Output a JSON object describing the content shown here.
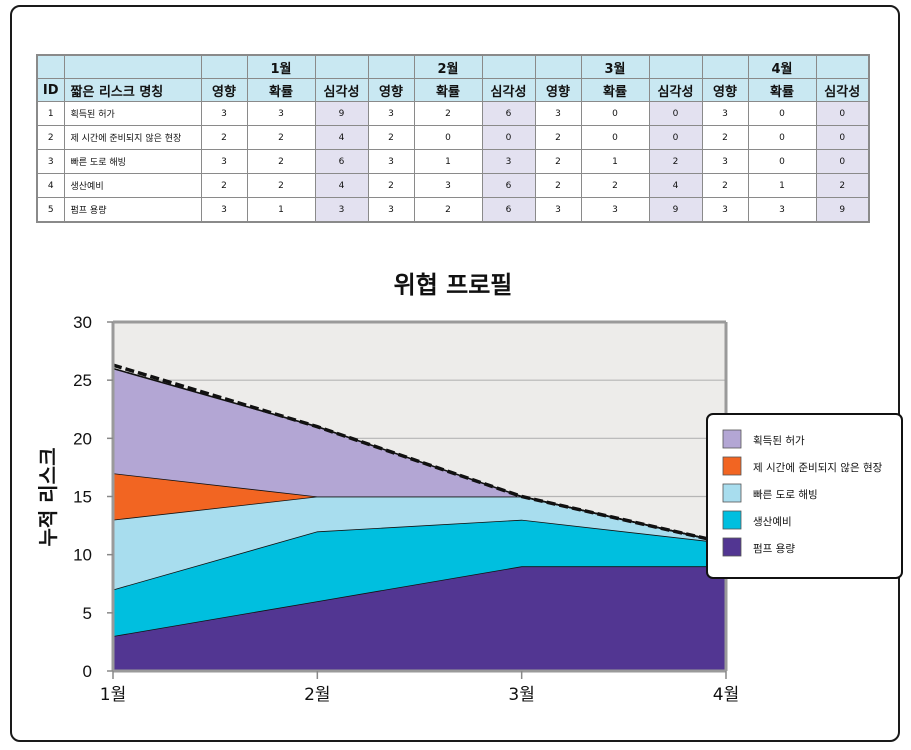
{
  "table": {
    "id_header": "ID",
    "name_header": "짧은 리스크 명칭",
    "months": [
      "1월",
      "2월",
      "3월",
      "4월"
    ],
    "sub_headers": [
      "영향",
      "확률",
      "심각성"
    ],
    "rows": [
      {
        "id": "1",
        "name": "획득된 허가",
        "values": [
          [
            "3",
            "3",
            "9"
          ],
          [
            "3",
            "2",
            "6"
          ],
          [
            "3",
            "0",
            "0"
          ],
          [
            "3",
            "0",
            "0"
          ]
        ]
      },
      {
        "id": "2",
        "name": "제 시간에 준비되지 않은 현장",
        "values": [
          [
            "2",
            "2",
            "4"
          ],
          [
            "2",
            "0",
            "0"
          ],
          [
            "2",
            "0",
            "0"
          ],
          [
            "2",
            "0",
            "0"
          ]
        ]
      },
      {
        "id": "3",
        "name": "빠른 도로 해빙",
        "values": [
          [
            "3",
            "2",
            "6"
          ],
          [
            "3",
            "1",
            "3"
          ],
          [
            "2",
            "1",
            "2"
          ],
          [
            "3",
            "0",
            "0"
          ]
        ]
      },
      {
        "id": "4",
        "name": "생산예비",
        "values": [
          [
            "2",
            "2",
            "4"
          ],
          [
            "2",
            "3",
            "6"
          ],
          [
            "2",
            "2",
            "4"
          ],
          [
            "2",
            "1",
            "2"
          ]
        ]
      },
      {
        "id": "5",
        "name": "펌프 용량",
        "values": [
          [
            "3",
            "1",
            "3"
          ],
          [
            "3",
            "2",
            "6"
          ],
          [
            "3",
            "3",
            "9"
          ],
          [
            "3",
            "3",
            "9"
          ]
        ]
      }
    ]
  },
  "chart_data": {
    "type": "area",
    "stacked": true,
    "title": "위협 프로필",
    "xlabel": "",
    "ylabel": "누적 리스크",
    "categories": [
      "1월",
      "2월",
      "3월",
      "4월"
    ],
    "ylim": [
      0,
      30
    ],
    "yticks": [
      0,
      5,
      10,
      15,
      20,
      25,
      30
    ],
    "grid": true,
    "legend_position": "right",
    "series": [
      {
        "name": "펌프 용량",
        "values": [
          3,
          6,
          9,
          9
        ],
        "color": "#523692"
      },
      {
        "name": "생산예비",
        "values": [
          4,
          6,
          4,
          2
        ],
        "color": "#00bfdf"
      },
      {
        "name": "빠른 도로 해빙",
        "values": [
          6,
          3,
          2,
          0
        ],
        "color": "#a8ddee"
      },
      {
        "name": "제 시간에 준비되지 않은 현장",
        "values": [
          4,
          0,
          0,
          0
        ],
        "color": "#f26522"
      },
      {
        "name": "획득된 허가",
        "values": [
          9,
          6,
          0,
          0
        ],
        "color": "#b3a6d4"
      }
    ],
    "legend_order": [
      "획득된 허가",
      "제 시간에 준비되지 않은 현장",
      "빠른 도로 해빙",
      "생산예비",
      "펌프 용량"
    ],
    "trendline": {
      "style": "dashed",
      "color": "#111111",
      "values": [
        26.3,
        21,
        15,
        11
      ]
    },
    "plot_background": "#edecea"
  }
}
